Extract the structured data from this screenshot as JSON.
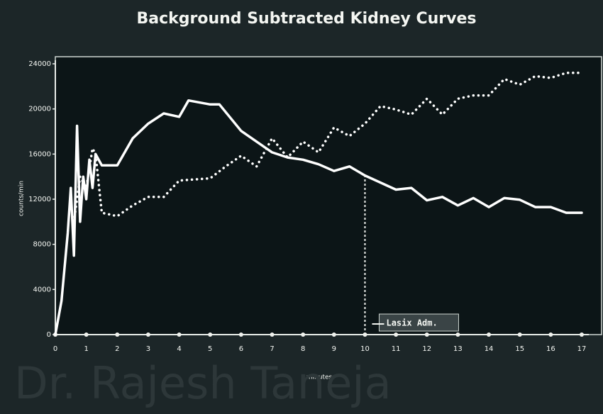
{
  "chart_data": {
    "type": "line",
    "title": "Background Subtracted Kidney Curves",
    "x_label": "minutes",
    "y_label": "counts/min",
    "xlim": [
      0,
      17
    ],
    "xticks": [
      0,
      1,
      2,
      3,
      4,
      5,
      6,
      7,
      8,
      9,
      10,
      11,
      12,
      13,
      14,
      15,
      16,
      17
    ],
    "ylim": [
      0,
      24000
    ],
    "yticks": [
      0,
      4000,
      8000,
      12000,
      16000,
      20000,
      24000
    ],
    "series": [
      {
        "color": "#ffffff",
        "style": "solid",
        "x": [
          0,
          0.2,
          0.4,
          0.5,
          0.6,
          0.7,
          0.8,
          0.9,
          1.0,
          1.1,
          1.2,
          1.3,
          1.5,
          2,
          2.5,
          3,
          3.5,
          4,
          4.3,
          5,
          5.3,
          6,
          7,
          7.5,
          8,
          8.5,
          9,
          9.5,
          10,
          11,
          11.5,
          12,
          12.5,
          13,
          13.5,
          14,
          14.5,
          15,
          15.5,
          16,
          16.5,
          17
        ],
        "values": [
          0,
          3000,
          9000,
          13000,
          7000,
          18500,
          10000,
          14000,
          12000,
          15500,
          13000,
          16000,
          15000,
          15000,
          17400,
          18700,
          19600,
          19300,
          20750,
          20400,
          20400,
          18050,
          16150,
          15700,
          15500,
          15100,
          14500,
          14900,
          14100,
          12850,
          13000,
          11900,
          12200,
          11450,
          12100,
          11300,
          12100,
          11950,
          11300,
          11300,
          10800,
          10800
        ]
      },
      {
        "color": "#ffffff",
        "style": "dotted",
        "x": [
          0.6,
          0.8,
          1.0,
          1.2,
          1.3,
          1.5,
          2,
          2.5,
          3,
          3.5,
          4,
          5,
          5.5,
          6,
          6.5,
          7,
          7.5,
          8,
          8.5,
          9,
          9.5,
          10,
          10.5,
          11,
          11.5,
          12,
          12.5,
          13,
          13.5,
          14,
          14.5,
          15,
          15.5,
          16,
          16.5,
          17
        ],
        "values": [
          10000,
          14000,
          13000,
          16500,
          16000,
          10800,
          10500,
          11450,
          12200,
          12200,
          13650,
          13850,
          14900,
          15850,
          14900,
          17400,
          15700,
          17100,
          16150,
          18350,
          17600,
          18700,
          20250,
          19950,
          19500,
          20900,
          19500,
          20900,
          21200,
          21200,
          22650,
          22150,
          22900,
          22750,
          23200,
          23200
        ]
      }
    ],
    "annotation": {
      "text": "Lasix Adm.",
      "x": 10
    },
    "watermark": "Dr. Rajesh Taneja"
  }
}
